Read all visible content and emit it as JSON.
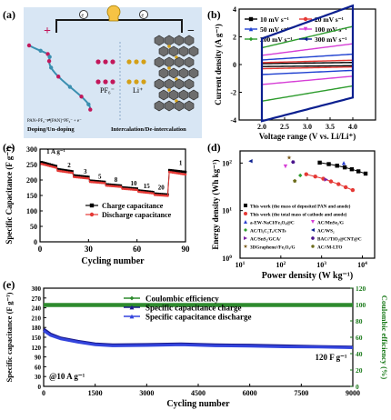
{
  "panels": {
    "a": {
      "label": "(a)",
      "ion_pf6": "PF₆⁻",
      "ion_li": "Li⁺",
      "pan_label": "PAN+PF₆⁻⇌[PAN]⁺PF₆⁻ + e⁻",
      "left_caption": "Doping/Un-doping",
      "right_caption": "Intercalation/De-intercalation",
      "plus": "+",
      "minus": "−",
      "electron": "e",
      "colors": {
        "bg": "#d8e6f4",
        "wire": "#1a1a1a",
        "pf6": "#c2185b",
        "li": "#d4a017",
        "pan": "#3a8fb0",
        "graphite": "#555555"
      }
    },
    "b": {
      "label": "(b)"
    },
    "c": {
      "label": "(c)"
    },
    "d": {
      "label": "(d)"
    },
    "e": {
      "label": "(e)"
    }
  },
  "chart_data": [
    {
      "id": "b",
      "type": "line",
      "xlabel": "Voltage range (V vs. Li/Li⁺)",
      "ylabel": "Current density (A g⁻¹)",
      "xlim": [
        1.5,
        4.5
      ],
      "ylim": [
        -4,
        4
      ],
      "xticks": [
        2.0,
        2.5,
        3.0,
        3.5,
        4.0
      ],
      "yticks": [
        -4,
        -2,
        0,
        2,
        4
      ],
      "legend_position": "top-left",
      "series": [
        {
          "name": "10 mV s⁻¹",
          "color": "#000000",
          "marker": "square",
          "half_height": 0.12
        },
        {
          "name": "20 mV s⁻¹",
          "color": "#e53935",
          "marker": "circle",
          "half_height": 0.25
        },
        {
          "name": "50 mV s⁻¹",
          "color": "#1e40d0",
          "marker": "triangle",
          "half_height": 0.6
        },
        {
          "name": "100 mV s⁻¹",
          "color": "#d63fd6",
          "marker": "triangle-down",
          "half_height": 1.2
        },
        {
          "name": "200 mV s⁻¹",
          "color": "#2e9c2e",
          "marker": "diamond",
          "half_height": 2.2
        },
        {
          "name": "300 mV s⁻¹",
          "color": "#0b1f8f",
          "marker": "triangle-left",
          "half_height": 3.4
        }
      ]
    },
    {
      "id": "c",
      "type": "line",
      "xlabel": "Cycling number",
      "ylabel": "Specific Capacitance (F g⁻¹)",
      "xlim": [
        0,
        90
      ],
      "ylim": [
        0,
        300
      ],
      "xticks": [
        0,
        30,
        60,
        90
      ],
      "yticks": [
        0,
        50,
        100,
        150,
        200,
        250,
        300
      ],
      "annotations": [
        "1 A g⁻¹",
        "2",
        "3",
        "5",
        "8",
        "10",
        "15",
        "20",
        "1"
      ],
      "legend_position": "bottom-center",
      "series": [
        {
          "name": "Charge capacitance",
          "color": "#000000",
          "marker": "square",
          "steps": [
            [
              1,
              10,
              258,
              245
            ],
            [
              11,
              20,
              235,
              228
            ],
            [
              21,
              30,
              215,
              210
            ],
            [
              31,
              40,
              198,
              194
            ],
            [
              41,
              50,
              186,
              182
            ],
            [
              51,
              60,
              176,
              172
            ],
            [
              61,
              70,
              166,
              161
            ],
            [
              71,
              79,
              156,
              153
            ],
            [
              80,
              90,
              232,
              226
            ]
          ]
        },
        {
          "name": "Discharge capacitance",
          "color": "#e53935",
          "marker": "circle",
          "steps": [
            [
              1,
              10,
              252,
              240
            ],
            [
              11,
              20,
              230,
              223
            ],
            [
              21,
              30,
              210,
              205
            ],
            [
              31,
              40,
              194,
              190
            ],
            [
              41,
              50,
              182,
              178
            ],
            [
              51,
              60,
              172,
              168
            ],
            [
              61,
              70,
              162,
              157
            ],
            [
              71,
              79,
              152,
              149
            ],
            [
              80,
              90,
              226,
              218
            ]
          ]
        }
      ]
    },
    {
      "id": "d",
      "type": "scatter",
      "xlabel": "Power density (W kg⁻¹)",
      "ylabel": "Energy density (Wh kg⁻¹)",
      "xscale": "log",
      "yscale": "log",
      "xlim": [
        10,
        20000
      ],
      "ylim": [
        1,
        180
      ],
      "legend_position": "bottom",
      "series": [
        {
          "name": "This work (the mass of deposited PAN and anode)",
          "color": "#000000",
          "marker": "square",
          "x": [
            900,
            1500,
            2400,
            3700,
            5500,
            8000,
            12000
          ],
          "y": [
            102,
            95,
            88,
            81,
            74,
            67,
            60
          ]
        },
        {
          "name": "This work (the total mass of cathode and anode)",
          "color": "#e53935",
          "marker": "circle",
          "x": [
            420,
            700,
            1100,
            1700,
            2600,
            3900,
            5800
          ],
          "y": [
            58,
            52,
            47,
            41,
            36,
            31,
            27
          ]
        },
        {
          "name": "a-EW-NaCl/Fe₃O₄@C",
          "color": "#2a3fd0",
          "marker": "triangle",
          "x": [
            3500
          ],
          "y": [
            100
          ]
        },
        {
          "name": "AC/MnSe₂/G",
          "color": "#d63fd6",
          "marker": "triangle-down",
          "x": [
            130
          ],
          "y": [
            85
          ]
        },
        {
          "name": "AC/Ti₃C₂Tₓ/CNTs",
          "color": "#2e9c2e",
          "marker": "diamond",
          "x": [
            300
          ],
          "y": [
            55
          ]
        },
        {
          "name": "AC/WS₂",
          "color": "#0b1f8f",
          "marker": "triangle-left",
          "x": [
            18
          ],
          "y": [
            110
          ]
        },
        {
          "name": "AC/SnS₂/GCA/",
          "color": "#7b1fa2",
          "marker": "triangle-right",
          "x": [
            1300
          ],
          "y": [
            45
          ]
        },
        {
          "name": "BAC//TiO₂@CNT@C",
          "color": "#4a148c",
          "marker": "hexagon",
          "x": [
            200
          ],
          "y": [
            105
          ]
        },
        {
          "name": "3DGraphene//Fe₃O₄/G",
          "color": "#7a5a1a",
          "marker": "star",
          "x": [
            160
          ],
          "y": [
            130
          ]
        },
        {
          "name": "AC//M-LTO",
          "color": "#6b6b1a",
          "marker": "pentagon",
          "x": [
            220
          ],
          "y": [
            42
          ]
        }
      ]
    },
    {
      "id": "e",
      "type": "line",
      "xlabel": "Cycling number",
      "ylabel": "Specific capacitance (F g⁻¹)",
      "y2label": "Coulombic efficiency (%)",
      "xlim": [
        0,
        9000
      ],
      "ylim": [
        0,
        300
      ],
      "y2lim": [
        0,
        120
      ],
      "xticks": [
        0,
        1500,
        3000,
        4500,
        6000,
        7500,
        9000
      ],
      "yticks": [
        0,
        30,
        60,
        90,
        120,
        150,
        180,
        210,
        240,
        270,
        300
      ],
      "y2ticks": [
        0,
        20,
        40,
        60,
        80,
        100,
        120
      ],
      "annotation_rate": "@10 A g⁻¹",
      "annotation_end": "120 F g⁻¹",
      "legend_position": "top-center",
      "series": [
        {
          "name": "Coulombic efficiency",
          "color": "#2e8b2e",
          "marker": "diamond",
          "axis": "right",
          "x": [
            0,
            9000
          ],
          "y": [
            99.5,
            99.5
          ]
        },
        {
          "name": "Specific capacitance charge",
          "color": "#1a1a8a",
          "marker": "triangle",
          "axis": "left",
          "x": [
            0,
            200,
            500,
            1000,
            1500,
            2000,
            3000,
            4000,
            5000,
            6000,
            7000,
            8000,
            9000
          ],
          "y": [
            175,
            160,
            148,
            138,
            130,
            127,
            128,
            130,
            127,
            126,
            124,
            122,
            120
          ]
        },
        {
          "name": "Specific capacitance discharge",
          "color": "#3344dd",
          "marker": "triangle",
          "axis": "left",
          "x": [
            0,
            200,
            500,
            1000,
            1500,
            2000,
            3000,
            4000,
            5000,
            6000,
            7000,
            8000,
            9000
          ],
          "y": [
            170,
            156,
            145,
            135,
            127,
            124,
            125,
            127,
            124,
            123,
            121,
            120,
            118
          ]
        }
      ]
    }
  ]
}
